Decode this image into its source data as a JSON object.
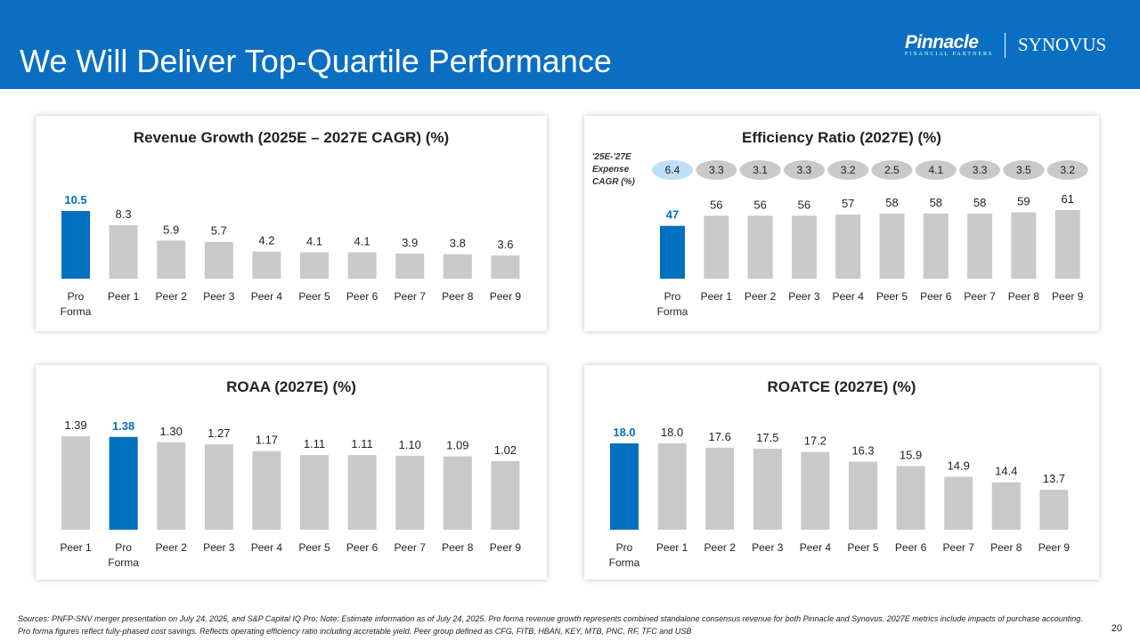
{
  "header": {
    "title": "We Will Deliver Top-Quartile Performance",
    "logo_left": "Pinnacle",
    "logo_left_sub": "FINANCIAL PARTNERS",
    "logo_right": "SYNOVUS",
    "brand_color": "#0A6FC2"
  },
  "colors": {
    "highlight": "#0070C0",
    "bar": "#C9C9C9",
    "expense_highlight": "#BDE0F7",
    "expense": "#C9C9C9"
  },
  "chart_data": [
    {
      "type": "bar",
      "title": "Revenue Growth (2025E – 2027E CAGR) (%)",
      "categories": [
        "Pro Forma",
        "Peer 1",
        "Peer 2",
        "Peer 3",
        "Peer 4",
        "Peer 5",
        "Peer 6",
        "Peer 7",
        "Peer 8",
        "Peer 9"
      ],
      "values": [
        10.5,
        8.3,
        5.9,
        5.7,
        4.2,
        4.1,
        4.1,
        3.9,
        3.8,
        3.6
      ],
      "labels": [
        "10.5",
        "8.3",
        "5.9",
        "5.7",
        "4.2",
        "4.1",
        "4.1",
        "3.9",
        "3.8",
        "3.6"
      ],
      "highlight": 0,
      "ylim": [
        0,
        10.5
      ]
    },
    {
      "type": "bar",
      "title": "Efficiency Ratio (2027E) (%)",
      "categories": [
        "Pro Forma",
        "Peer 1",
        "Peer 2",
        "Peer 3",
        "Peer 4",
        "Peer 5",
        "Peer 6",
        "Peer 7",
        "Peer 8",
        "Peer 9"
      ],
      "values": [
        47,
        56,
        56,
        56,
        57,
        58,
        58,
        58,
        59,
        61
      ],
      "labels": [
        "47",
        "56",
        "56",
        "56",
        "57",
        "58",
        "58",
        "58",
        "59",
        "61"
      ],
      "highlight": 0,
      "ylim": [
        0,
        61
      ],
      "expense_label": "'25E-'27E\nExpense\nCAGR (%)",
      "expense_cagr": [
        "6.4",
        "3.3",
        "3.1",
        "3.3",
        "3.2",
        "2.5",
        "4.1",
        "3.3",
        "3.5",
        "3.2"
      ]
    },
    {
      "type": "bar",
      "title": "ROAA (2027E) (%)",
      "categories": [
        "Peer 1",
        "Pro Forma",
        "Peer 2",
        "Peer 3",
        "Peer 4",
        "Peer 5",
        "Peer 6",
        "Peer 7",
        "Peer 8",
        "Peer 9"
      ],
      "values": [
        1.39,
        1.38,
        1.3,
        1.27,
        1.17,
        1.11,
        1.11,
        1.1,
        1.09,
        1.02
      ],
      "labels": [
        "1.39",
        "1.38",
        "1.30",
        "1.27",
        "1.17",
        "1.11",
        "1.11",
        "1.10",
        "1.09",
        "1.02"
      ],
      "highlight": 1,
      "ylim": [
        0,
        1.39
      ]
    },
    {
      "type": "bar",
      "title": "ROATCE (2027E) (%)",
      "categories": [
        "Pro Forma",
        "Peer 1",
        "Peer 2",
        "Peer 3",
        "Peer 4",
        "Peer 5",
        "Peer 6",
        "Peer 7",
        "Peer 8",
        "Peer 9"
      ],
      "values": [
        18.0,
        18.0,
        17.6,
        17.5,
        17.2,
        16.3,
        15.9,
        14.9,
        14.4,
        13.7
      ],
      "labels": [
        "18.0",
        "18.0",
        "17.6",
        "17.5",
        "17.2",
        "16.3",
        "15.9",
        "14.9",
        "14.4",
        "13.7"
      ],
      "highlight": 0,
      "ylim": [
        10,
        18
      ]
    }
  ],
  "footer": {
    "sources": "Sources: PNFP-SNV merger presentation on July 24, 2025, and S&P Capital IQ Pro; Note: Estimate information as of July 24, 2025. Pro forma revenue growth represents combined standalone consensus revenue for both Pinnacle and Synovus. 2027E metrics include impacts of purchase accounting. Pro forma figures reflect fully-phased cost savings. Reflects operating efficiency ratio including accretable yield.  Peer group defined as CFG, FITB, HBAN, KEY, MTB, PNC, RF, TFC and USB",
    "page": "20"
  }
}
